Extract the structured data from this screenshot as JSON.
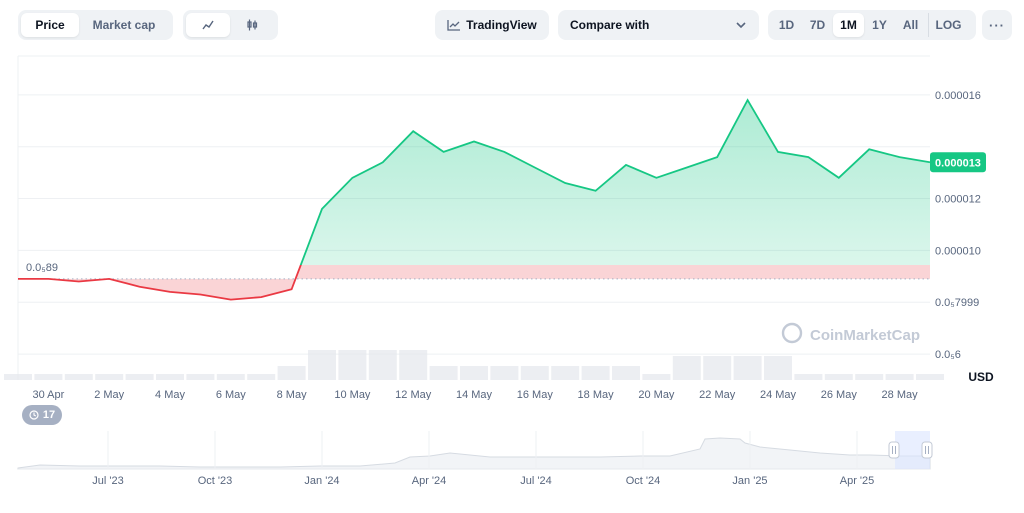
{
  "toolbar": {
    "type_toggle": [
      {
        "label": "Price",
        "active": true
      },
      {
        "label": "Market cap",
        "active": false
      }
    ],
    "chart_style": [
      {
        "icon": "line-chart-icon",
        "active": true
      },
      {
        "icon": "candlestick-icon",
        "active": false
      }
    ],
    "tradingview_label": "TradingView",
    "compare_label": "Compare with",
    "ranges": [
      {
        "label": "1D",
        "active": false
      },
      {
        "label": "7D",
        "active": false
      },
      {
        "label": "1M",
        "active": true
      },
      {
        "label": "1Y",
        "active": false
      },
      {
        "label": "All",
        "active": false
      },
      {
        "label": "LOG",
        "active": false
      }
    ],
    "more_label": "···"
  },
  "colors": {
    "up": "#16c784",
    "down": "#ea3943",
    "ref_line": "#a6b0c3",
    "grid": "#eef0f3",
    "volume": "#e4e7ec"
  },
  "chart": {
    "currency": "USD",
    "start_label": "0.0₅89",
    "last_price_label": "0.000013",
    "watermark": "CoinMarketCap",
    "yticks": [
      {
        "value": 1.6e-05,
        "label": "0.000016"
      },
      {
        "value": 1.4e-05,
        "label": ""
      },
      {
        "value": 1.2e-05,
        "label": "0.000012"
      },
      {
        "value": 1e-05,
        "label": "0.000010"
      },
      {
        "value": 7.9999e-06,
        "label": "0.0₅7999"
      },
      {
        "value": 6e-06,
        "label": "0.0₅6"
      }
    ],
    "xticks": [
      "30 Apr",
      "2 May",
      "4 May",
      "6 May",
      "8 May",
      "10 May",
      "12 May",
      "14 May",
      "16 May",
      "18 May",
      "20 May",
      "22 May",
      "24 May",
      "26 May",
      "28 May"
    ]
  },
  "navigator": {
    "badge_count": "17",
    "labels": [
      "Jul '23",
      "Oct '23",
      "Jan '24",
      "Apr '24",
      "Jul '24",
      "Oct '24",
      "Jan '25",
      "Apr '25"
    ]
  },
  "chart_data": {
    "type": "area",
    "x": [
      "29 Apr",
      "30 Apr",
      "1 May",
      "2 May",
      "3 May",
      "4 May",
      "5 May",
      "6 May",
      "7 May",
      "8 May",
      "9 May",
      "10 May",
      "11 May",
      "12 May",
      "13 May",
      "14 May",
      "15 May",
      "16 May",
      "17 May",
      "18 May",
      "19 May",
      "20 May",
      "21 May",
      "22 May",
      "23 May",
      "24 May",
      "25 May",
      "26 May",
      "27 May",
      "28 May",
      "29 May"
    ],
    "series": [
      {
        "values": [
          8.9e-06,
          8.9e-06,
          8.8e-06,
          8.9e-06,
          8.6e-06,
          8.4e-06,
          8.3e-06,
          8.1e-06,
          8.2e-06,
          8.5e-06,
          1.16e-05,
          1.28e-05,
          1.34e-05,
          1.46e-05,
          1.38e-05,
          1.42e-05,
          1.38e-05,
          1.32e-05,
          1.26e-05,
          1.23e-05,
          1.33e-05,
          1.28e-05,
          1.32e-05,
          1.36e-05,
          1.58e-05,
          1.38e-05,
          1.36e-05,
          1.28e-05,
          1.39e-05,
          1.36e-05,
          1.34e-05
        ]
      }
    ],
    "reference_value": 8.9e-06,
    "ylim": [
      5e-06,
      1.75e-05
    ],
    "xlabel": "",
    "ylabel": "USD",
    "grid": true
  }
}
